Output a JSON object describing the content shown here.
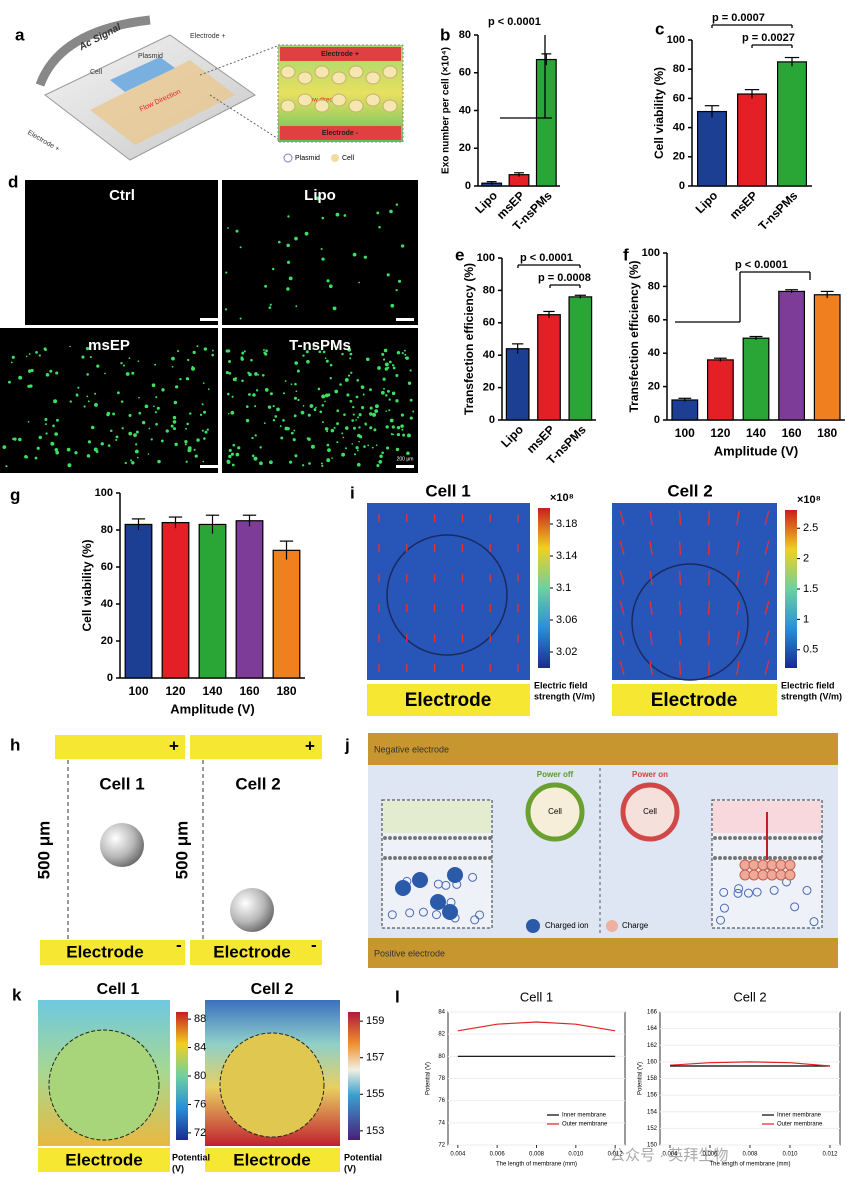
{
  "chart_data": [
    {
      "type": "bar",
      "letter": "b",
      "categories": [
        "Lipo",
        "msEP",
        "T-nsPMs"
      ],
      "values": [
        1.5,
        6,
        67
      ],
      "errors": [
        0.8,
        1,
        3
      ],
      "colors": [
        "#1c3f94",
        "#e41f26",
        "#2aa637"
      ],
      "ylim": [
        0,
        80
      ],
      "yticks": [
        0,
        20,
        40,
        60,
        80
      ],
      "ylabel": "Exo number per cell (×10⁴)",
      "annotations": [
        "p < 0.0001"
      ]
    },
    {
      "type": "bar",
      "letter": "c",
      "categories": [
        "Lipo",
        "msEP",
        "T-nsPMs"
      ],
      "values": [
        51,
        63,
        85
      ],
      "errors": [
        4,
        3,
        3
      ],
      "colors": [
        "#1c3f94",
        "#e41f26",
        "#2aa637"
      ],
      "ylim": [
        0,
        100
      ],
      "yticks": [
        0,
        20,
        40,
        60,
        80,
        100
      ],
      "ylabel": "Cell viability (%)",
      "annotations": [
        "p = 0.0007",
        "p = 0.0027"
      ]
    },
    {
      "type": "bar",
      "letter": "e",
      "categories": [
        "Lipo",
        "msEP",
        "T-nsPMs"
      ],
      "values": [
        44,
        65,
        76
      ],
      "errors": [
        3,
        2,
        1
      ],
      "colors": [
        "#1c3f94",
        "#e41f26",
        "#2aa637"
      ],
      "ylim": [
        0,
        100
      ],
      "yticks": [
        0,
        20,
        40,
        60,
        80,
        100
      ],
      "ylabel": "Transfection efficiency (%)",
      "annotations": [
        "p < 0.0001",
        "p = 0.0008"
      ]
    },
    {
      "type": "bar",
      "letter": "f",
      "categories": [
        "100",
        "120",
        "140",
        "160",
        "180"
      ],
      "values": [
        12,
        36,
        49,
        77,
        75
      ],
      "errors": [
        1,
        1,
        1,
        1,
        2
      ],
      "colors": [
        "#1c3f94",
        "#e41f26",
        "#2aa637",
        "#7d3c98",
        "#f07f1f"
      ],
      "ylim": [
        0,
        100
      ],
      "yticks": [
        0,
        20,
        40,
        60,
        80,
        100
      ],
      "ylabel": "Transfection efficiency (%)",
      "xlabel": "Amplitude (V)",
      "annotations": [
        "p < 0.0001"
      ]
    },
    {
      "type": "bar",
      "letter": "g",
      "categories": [
        "100",
        "120",
        "140",
        "160",
        "180"
      ],
      "values": [
        83,
        84,
        83,
        85,
        69
      ],
      "errors": [
        3,
        3,
        5,
        3,
        5
      ],
      "colors": [
        "#1c3f94",
        "#e41f26",
        "#2aa637",
        "#7d3c98",
        "#f07f1f"
      ],
      "ylim": [
        0,
        100
      ],
      "yticks": [
        0,
        20,
        40,
        60,
        80,
        100
      ],
      "ylabel": "Cell viability (%)",
      "xlabel": "Amplitude (V)"
    },
    {
      "type": "line",
      "letter": "l",
      "title": "Cell 1",
      "x": [
        0.004,
        0.006,
        0.008,
        0.01,
        0.012
      ],
      "series": [
        {
          "name": "Inner membrane",
          "color": "#000000",
          "values": [
            80,
            80,
            80,
            80,
            80
          ]
        },
        {
          "name": "Outer membrane",
          "color": "#e41f26",
          "values": [
            82.3,
            82.9,
            83.1,
            82.9,
            82.3
          ]
        }
      ],
      "xlim": [
        0.0035,
        0.0125
      ],
      "xticks": [
        0.004,
        0.006,
        0.008,
        {
          "value": 0.01,
          "label": "0.010"
        },
        0.012
      ],
      "ylim": [
        72,
        84
      ],
      "yticks": [
        72,
        74,
        76,
        78,
        80,
        82,
        84
      ],
      "xlabel": "The length of membrane (mm)",
      "ylabel": "Potential (V)"
    },
    {
      "type": "line",
      "title": "Cell 2",
      "x": [
        0.004,
        0.006,
        0.008,
        0.01,
        0.012
      ],
      "series": [
        {
          "name": "Inner membrane",
          "color": "#000000",
          "values": [
            159.5,
            159.5,
            159.5,
            159.5,
            159.5
          ]
        },
        {
          "name": "Outer membrane",
          "color": "#e41f26",
          "values": [
            159.6,
            159.9,
            160,
            159.9,
            159.5
          ]
        }
      ],
      "xlim": [
        0.0035,
        0.0125
      ],
      "xticks": [
        0.004,
        0.006,
        0.008,
        {
          "value": 0.01,
          "label": "0.010"
        },
        0.012
      ],
      "ylim": [
        150,
        166
      ],
      "yticks": [
        150,
        152,
        154,
        156,
        158,
        160,
        162,
        164,
        166
      ],
      "xlabel": "The length of membrane (mm)",
      "ylabel": "Potential (V)"
    }
  ],
  "panels": {
    "a": {
      "letter": "a",
      "ac_signal": "Ac Signal",
      "electrode_top": "Electrode +",
      "cell": "Cell",
      "plasmid": "Plasmid",
      "flow": "Flow Direction",
      "electrode_left": "Electrode +",
      "inset_top": "Electrode +",
      "inset_flow": "Flow direction",
      "inset_bottom": "Electrode -",
      "legend": [
        "Plasmid",
        "Cell"
      ]
    },
    "d": {
      "letter": "d",
      "labels": [
        "Ctrl",
        "Lipo",
        "msEP",
        "T-nsPMs"
      ],
      "scale": "200 μm"
    },
    "i": {
      "letter": "i",
      "titles": [
        "Cell 1",
        "Cell 2"
      ],
      "electrode": "Electrode",
      "colorbars": [
        {
          "multiplier": "×10⁸",
          "lim": [
            3.0,
            3.2
          ],
          "ticks": [
            3.02,
            3.06,
            3.1,
            3.14,
            3.18
          ],
          "label_lines": [
            "Electric field",
            "strength (V/m)"
          ]
        },
        {
          "multiplier": "×10⁸",
          "lim": [
            0.2,
            2.8
          ],
          "ticks": [
            0.5,
            1,
            1.5,
            2,
            2.5
          ],
          "label_lines": [
            "Electric field",
            "strength (V/m)"
          ]
        }
      ]
    },
    "h": {
      "letter": "h",
      "titles": [
        "Cell 1",
        "Cell 2"
      ],
      "plus": "+",
      "distance": "500 μm",
      "electrode": "Electrode",
      "minus": "-"
    },
    "j": {
      "letter": "j",
      "negative": "Negative electrode",
      "off": "Power off",
      "on": "Power on",
      "cell": "Cell",
      "ion": "Charged ion",
      "charge": "Charge",
      "positive": "Positive electrode"
    },
    "k": {
      "letter": "k",
      "titles": [
        "Cell 1",
        "Cell 2"
      ],
      "electrode": "Electrode",
      "colorbars": [
        {
          "lim": [
            71,
            89
          ],
          "ticks": [
            72,
            76,
            80,
            84,
            88
          ],
          "label_lines": [
            "Potential",
            "(V)"
          ]
        },
        {
          "lim": [
            152.5,
            159.5
          ],
          "ticks": [
            153,
            155,
            157,
            159
          ],
          "label_lines": [
            "Potential",
            "(V)"
          ]
        }
      ]
    },
    "watermark": "公众号 · 英拜生物"
  }
}
